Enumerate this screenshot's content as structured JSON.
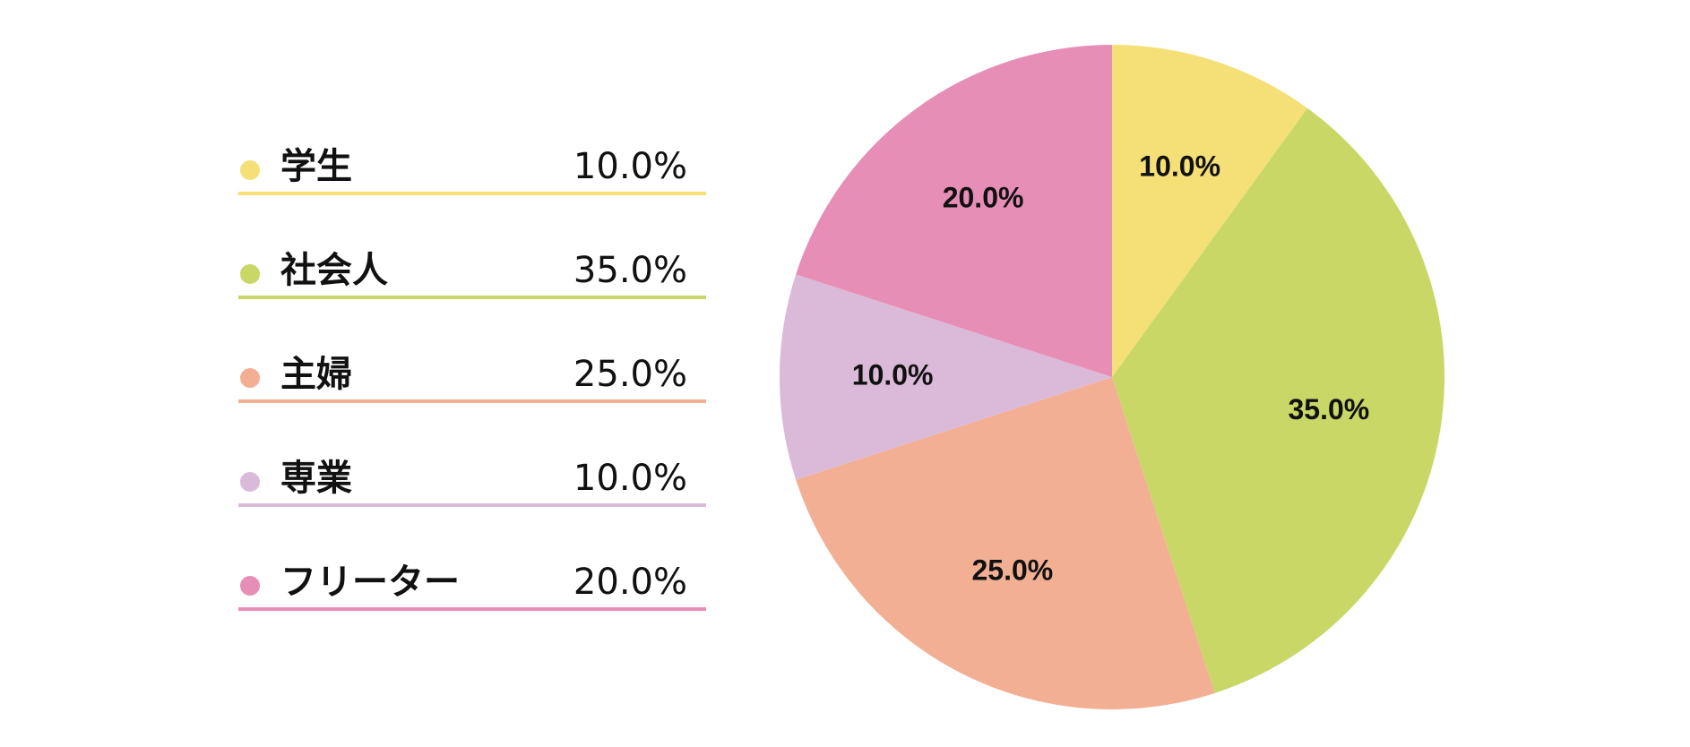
{
  "chart_data": {
    "type": "pie",
    "categories": [
      "学生",
      "社会人",
      "主婦",
      "専業",
      "フリーター"
    ],
    "values": [
      10,
      35,
      25,
      10,
      20
    ],
    "value_labels": [
      "10.0%",
      "35.0%",
      "25.0%",
      "10.0%",
      "20.0%"
    ],
    "colors": [
      "#f5df77",
      "#c9d766",
      "#f3af94",
      "#dbbad9",
      "#e78eb6"
    ]
  }
}
